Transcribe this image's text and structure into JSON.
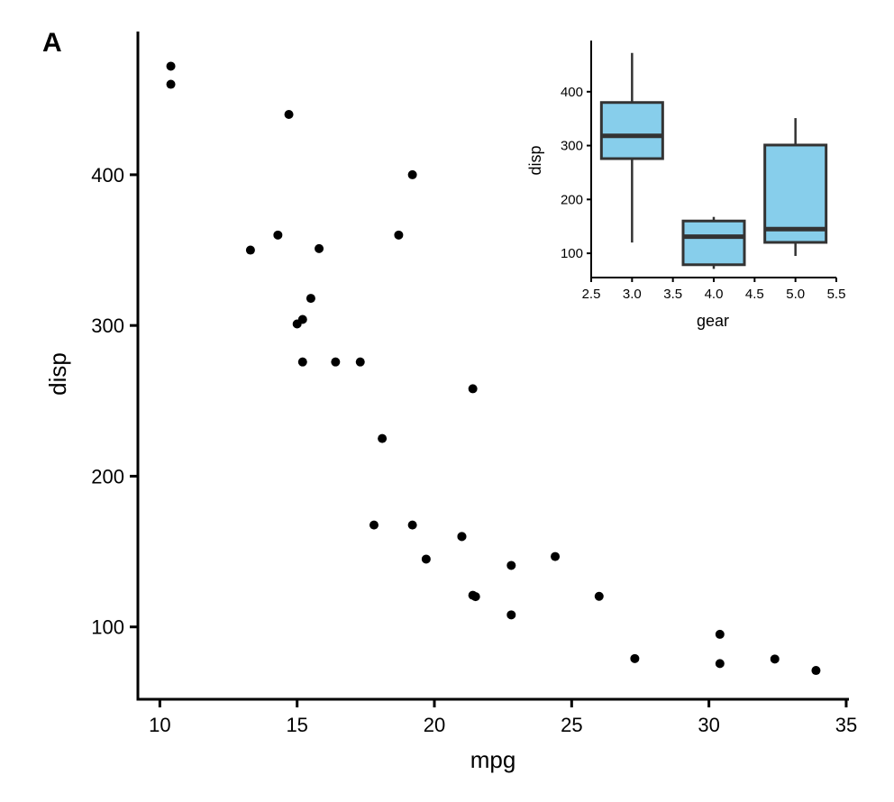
{
  "panel_label": "A",
  "chart_data": [
    {
      "type": "scatter",
      "xlabel": "mpg",
      "ylabel": "disp",
      "xlim": [
        9.2,
        35.1
      ],
      "ylim": [
        52,
        495
      ],
      "xticks": [
        10,
        15,
        20,
        25,
        30,
        35
      ],
      "yticks": [
        100,
        200,
        300,
        400
      ],
      "grid": false,
      "point_color": "#000000",
      "points": [
        {
          "x": 21.0,
          "y": 160
        },
        {
          "x": 21.0,
          "y": 160
        },
        {
          "x": 22.8,
          "y": 108
        },
        {
          "x": 21.4,
          "y": 258
        },
        {
          "x": 18.7,
          "y": 360
        },
        {
          "x": 18.1,
          "y": 225
        },
        {
          "x": 14.3,
          "y": 360
        },
        {
          "x": 24.4,
          "y": 146.7
        },
        {
          "x": 22.8,
          "y": 140.8
        },
        {
          "x": 19.2,
          "y": 167.6
        },
        {
          "x": 17.8,
          "y": 167.6
        },
        {
          "x": 16.4,
          "y": 275.8
        },
        {
          "x": 17.3,
          "y": 275.8
        },
        {
          "x": 15.2,
          "y": 275.8
        },
        {
          "x": 10.4,
          "y": 472
        },
        {
          "x": 10.4,
          "y": 460
        },
        {
          "x": 14.7,
          "y": 440
        },
        {
          "x": 32.4,
          "y": 78.7
        },
        {
          "x": 30.4,
          "y": 75.7
        },
        {
          "x": 33.9,
          "y": 71.1
        },
        {
          "x": 21.5,
          "y": 120.1
        },
        {
          "x": 15.5,
          "y": 318
        },
        {
          "x": 15.2,
          "y": 304
        },
        {
          "x": 13.3,
          "y": 350
        },
        {
          "x": 19.2,
          "y": 400
        },
        {
          "x": 27.3,
          "y": 79
        },
        {
          "x": 26.0,
          "y": 120.3
        },
        {
          "x": 30.4,
          "y": 95.1
        },
        {
          "x": 15.8,
          "y": 351
        },
        {
          "x": 19.7,
          "y": 145
        },
        {
          "x": 15.0,
          "y": 301
        },
        {
          "x": 21.4,
          "y": 121
        }
      ]
    },
    {
      "type": "box",
      "xlabel": "gear",
      "ylabel": "disp",
      "xlim": [
        2.5,
        5.5
      ],
      "ylim": [
        55,
        495
      ],
      "xticks": [
        "2.5",
        "3.0",
        "3.5",
        "4.0",
        "4.5",
        "5.0",
        "5.5"
      ],
      "yticks": [
        100,
        200,
        300,
        400
      ],
      "box_fill": "#87ceeb",
      "box_stroke": "#333333",
      "boxes": [
        {
          "gear": 3.0,
          "min": 120.1,
          "q1": 275.8,
          "median": 318,
          "q3": 380,
          "max": 472
        },
        {
          "gear": 4.0,
          "min": 71.1,
          "q1": 78.8,
          "median": 130.9,
          "q3": 160,
          "max": 167.6
        },
        {
          "gear": 5.0,
          "min": 95.1,
          "q1": 120.3,
          "median": 145,
          "q3": 301,
          "max": 351
        }
      ]
    }
  ]
}
